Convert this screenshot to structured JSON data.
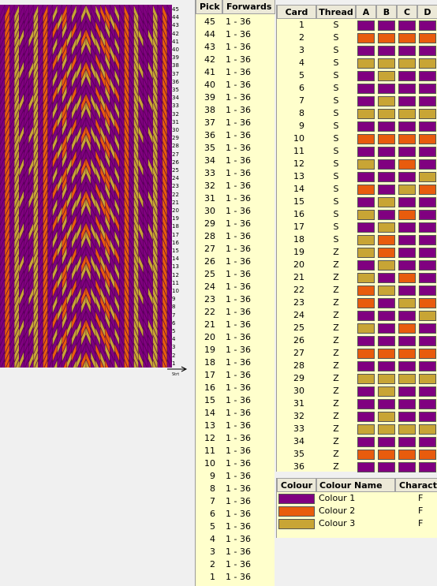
{
  "colors": {
    "c1": "#800080",
    "c2": "#e85c0d",
    "c3": "#c8a535"
  },
  "weave_numbers": [
    "45",
    "44",
    "43",
    "42",
    "41",
    "40",
    "39",
    "38",
    "37",
    "36",
    "35",
    "34",
    "33",
    "32",
    "31",
    "30",
    "29",
    "28",
    "27",
    "26",
    "25",
    "24",
    "23",
    "22",
    "21",
    "20",
    "19",
    "18",
    "17",
    "16",
    "15",
    "14",
    "13",
    "12",
    "11",
    "10",
    "9",
    "8",
    "7",
    "6",
    "5",
    "4",
    "3",
    "2",
    "1"
  ],
  "weave_start_label": "Strt",
  "pick_table": {
    "headers": {
      "pick": "Pick",
      "forwards": "Forwards"
    },
    "rows": [
      {
        "pick": "45",
        "range": "1 - 36"
      },
      {
        "pick": "44",
        "range": "1 - 36"
      },
      {
        "pick": "43",
        "range": "1 - 36"
      },
      {
        "pick": "42",
        "range": "1 - 36"
      },
      {
        "pick": "41",
        "range": "1 - 36"
      },
      {
        "pick": "40",
        "range": "1 - 36"
      },
      {
        "pick": "39",
        "range": "1 - 36"
      },
      {
        "pick": "38",
        "range": "1 - 36"
      },
      {
        "pick": "37",
        "range": "1 - 36"
      },
      {
        "pick": "36",
        "range": "1 - 36"
      },
      {
        "pick": "35",
        "range": "1 - 36"
      },
      {
        "pick": "34",
        "range": "1 - 36"
      },
      {
        "pick": "33",
        "range": "1 - 36"
      },
      {
        "pick": "32",
        "range": "1 - 36"
      },
      {
        "pick": "31",
        "range": "1 - 36"
      },
      {
        "pick": "30",
        "range": "1 - 36"
      },
      {
        "pick": "29",
        "range": "1 - 36"
      },
      {
        "pick": "28",
        "range": "1 - 36"
      },
      {
        "pick": "27",
        "range": "1 - 36"
      },
      {
        "pick": "26",
        "range": "1 - 36"
      },
      {
        "pick": "25",
        "range": "1 - 36"
      },
      {
        "pick": "24",
        "range": "1 - 36"
      },
      {
        "pick": "23",
        "range": "1 - 36"
      },
      {
        "pick": "22",
        "range": "1 - 36"
      },
      {
        "pick": "21",
        "range": "1 - 36"
      },
      {
        "pick": "20",
        "range": "1 - 36"
      },
      {
        "pick": "19",
        "range": "1 - 36"
      },
      {
        "pick": "18",
        "range": "1 - 36"
      },
      {
        "pick": "17",
        "range": "1 - 36"
      },
      {
        "pick": "16",
        "range": "1 - 36"
      },
      {
        "pick": "15",
        "range": "1 - 36"
      },
      {
        "pick": "14",
        "range": "1 - 36"
      },
      {
        "pick": "13",
        "range": "1 - 36"
      },
      {
        "pick": "12",
        "range": "1 - 36"
      },
      {
        "pick": "11",
        "range": "1 - 36"
      },
      {
        "pick": "10",
        "range": "1 - 36"
      },
      {
        "pick": "9",
        "range": "1 - 36"
      },
      {
        "pick": "8",
        "range": "1 - 36"
      },
      {
        "pick": "7",
        "range": "1 - 36"
      },
      {
        "pick": "6",
        "range": "1 - 36"
      },
      {
        "pick": "5",
        "range": "1 - 36"
      },
      {
        "pick": "4",
        "range": "1 - 36"
      },
      {
        "pick": "3",
        "range": "1 - 36"
      },
      {
        "pick": "2",
        "range": "1 - 36"
      },
      {
        "pick": "1",
        "range": "1 - 36"
      }
    ]
  },
  "card_table": {
    "headers": {
      "card": "Card",
      "thread": "Thread",
      "a": "A",
      "b": "B",
      "c": "C",
      "d": "D"
    },
    "rows": [
      {
        "card": "1",
        "thread": "S",
        "holes": [
          1,
          1,
          1,
          1
        ]
      },
      {
        "card": "2",
        "thread": "S",
        "holes": [
          2,
          2,
          2,
          2
        ]
      },
      {
        "card": "3",
        "thread": "S",
        "holes": [
          1,
          1,
          1,
          1
        ]
      },
      {
        "card": "4",
        "thread": "S",
        "holes": [
          3,
          3,
          3,
          3
        ]
      },
      {
        "card": "5",
        "thread": "S",
        "holes": [
          1,
          3,
          1,
          1
        ]
      },
      {
        "card": "6",
        "thread": "S",
        "holes": [
          1,
          1,
          1,
          1
        ]
      },
      {
        "card": "7",
        "thread": "S",
        "holes": [
          1,
          3,
          1,
          1
        ]
      },
      {
        "card": "8",
        "thread": "S",
        "holes": [
          3,
          3,
          3,
          3
        ]
      },
      {
        "card": "9",
        "thread": "S",
        "holes": [
          1,
          1,
          1,
          1
        ]
      },
      {
        "card": "10",
        "thread": "S",
        "holes": [
          2,
          2,
          2,
          2
        ]
      },
      {
        "card": "11",
        "thread": "S",
        "holes": [
          1,
          1,
          1,
          1
        ]
      },
      {
        "card": "12",
        "thread": "S",
        "holes": [
          3,
          1,
          2,
          1
        ]
      },
      {
        "card": "13",
        "thread": "S",
        "holes": [
          1,
          1,
          1,
          3
        ]
      },
      {
        "card": "14",
        "thread": "S",
        "holes": [
          2,
          1,
          3,
          2
        ]
      },
      {
        "card": "15",
        "thread": "S",
        "holes": [
          1,
          3,
          1,
          1
        ]
      },
      {
        "card": "16",
        "thread": "S",
        "holes": [
          3,
          1,
          2,
          1
        ]
      },
      {
        "card": "17",
        "thread": "S",
        "holes": [
          1,
          3,
          1,
          1
        ]
      },
      {
        "card": "18",
        "thread": "S",
        "holes": [
          3,
          2,
          1,
          1
        ]
      },
      {
        "card": "19",
        "thread": "Z",
        "holes": [
          3,
          2,
          1,
          1
        ]
      },
      {
        "card": "20",
        "thread": "Z",
        "holes": [
          1,
          3,
          1,
          1
        ]
      },
      {
        "card": "21",
        "thread": "Z",
        "holes": [
          3,
          1,
          2,
          1
        ]
      },
      {
        "card": "22",
        "thread": "Z",
        "holes": [
          2,
          3,
          1,
          1
        ]
      },
      {
        "card": "23",
        "thread": "Z",
        "holes": [
          2,
          1,
          3,
          2
        ]
      },
      {
        "card": "24",
        "thread": "Z",
        "holes": [
          1,
          1,
          1,
          3
        ]
      },
      {
        "card": "25",
        "thread": "Z",
        "holes": [
          3,
          1,
          2,
          1
        ]
      },
      {
        "card": "26",
        "thread": "Z",
        "holes": [
          1,
          1,
          1,
          1
        ]
      },
      {
        "card": "27",
        "thread": "Z",
        "holes": [
          2,
          2,
          2,
          2
        ]
      },
      {
        "card": "28",
        "thread": "Z",
        "holes": [
          1,
          1,
          1,
          1
        ]
      },
      {
        "card": "29",
        "thread": "Z",
        "holes": [
          3,
          3,
          3,
          3
        ]
      },
      {
        "card": "30",
        "thread": "Z",
        "holes": [
          1,
          3,
          1,
          1
        ]
      },
      {
        "card": "31",
        "thread": "Z",
        "holes": [
          1,
          1,
          1,
          1
        ]
      },
      {
        "card": "32",
        "thread": "Z",
        "holes": [
          1,
          3,
          1,
          1
        ]
      },
      {
        "card": "33",
        "thread": "Z",
        "holes": [
          3,
          3,
          3,
          3
        ]
      },
      {
        "card": "34",
        "thread": "Z",
        "holes": [
          1,
          1,
          1,
          1
        ]
      },
      {
        "card": "35",
        "thread": "Z",
        "holes": [
          2,
          2,
          2,
          2
        ]
      },
      {
        "card": "36",
        "thread": "Z",
        "holes": [
          1,
          1,
          1,
          1
        ]
      }
    ]
  },
  "colour_table": {
    "headers": {
      "colour": "Colour",
      "name": "Colour Name",
      "char": "Characte"
    },
    "rows": [
      {
        "name": "Colour 1",
        "char": "F",
        "color": "#800080"
      },
      {
        "name": "Colour 2",
        "char": "F",
        "color": "#e85c0d"
      },
      {
        "name": "Colour 3",
        "char": "F",
        "color": "#c8a535"
      }
    ]
  }
}
